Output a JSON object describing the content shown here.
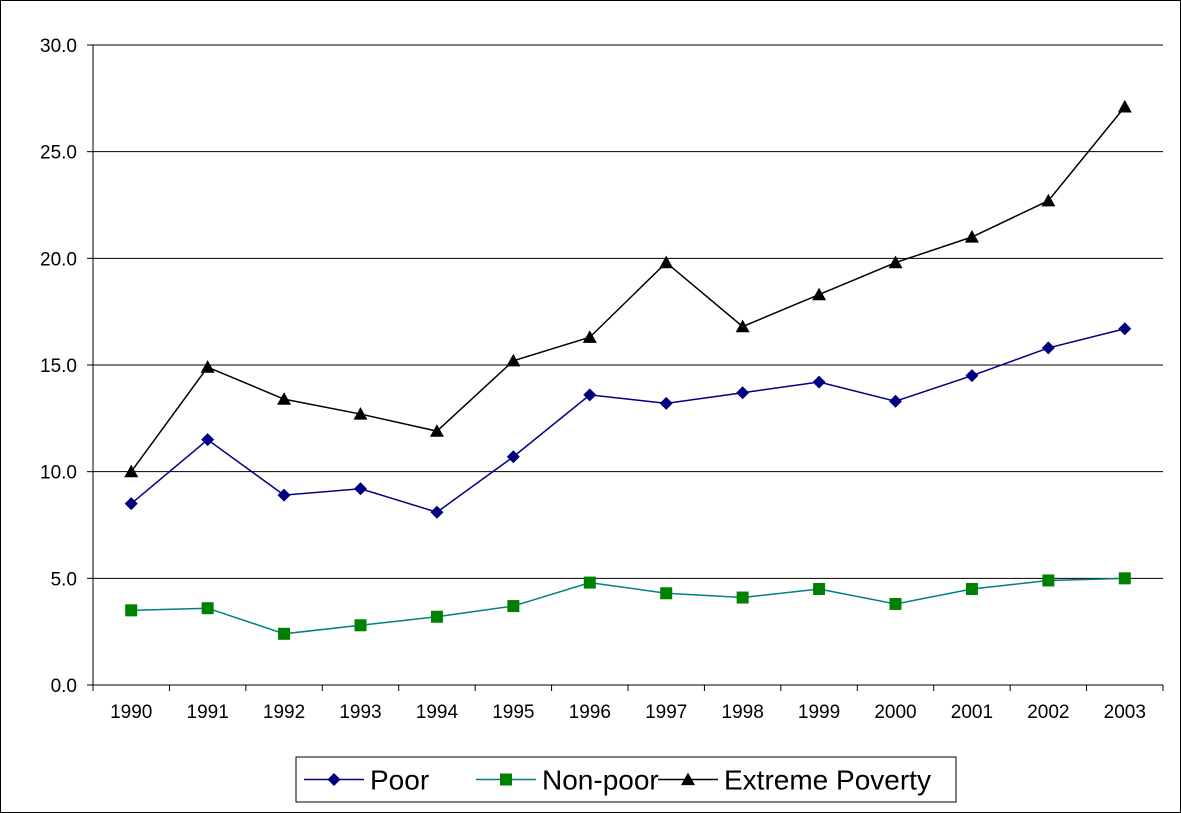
{
  "chart_data": {
    "type": "line",
    "title": "",
    "xlabel": "",
    "ylabel": "",
    "categories": [
      "1990",
      "1991",
      "1992",
      "1993",
      "1994",
      "1995",
      "1996",
      "1997",
      "1998",
      "1999",
      "2000",
      "2001",
      "2002",
      "2003"
    ],
    "ylim": [
      0,
      30
    ],
    "yticks": [
      0,
      5,
      10,
      15,
      20,
      25,
      30
    ],
    "ytick_labels": [
      "0.0",
      "5.0",
      "10.0",
      "15.0",
      "20.0",
      "25.0",
      "30.0"
    ],
    "grid": true,
    "legend_position": "bottom",
    "series": [
      {
        "name": "Poor",
        "color": "#000080",
        "marker": "diamond",
        "values": [
          8.5,
          11.5,
          8.9,
          9.2,
          8.1,
          10.7,
          13.6,
          13.2,
          13.7,
          14.2,
          13.3,
          14.5,
          15.8,
          16.7
        ]
      },
      {
        "name": "Non-poor",
        "color": "#008080",
        "marker_color": "#008000",
        "marker": "square",
        "values": [
          3.5,
          3.6,
          2.4,
          2.8,
          3.2,
          3.7,
          4.8,
          4.3,
          4.1,
          4.5,
          3.8,
          4.5,
          4.9,
          5.0
        ]
      },
      {
        "name": "Extreme Poverty",
        "color": "#000000",
        "marker": "triangle",
        "values": [
          10.0,
          14.9,
          13.4,
          12.7,
          11.9,
          15.2,
          16.3,
          19.8,
          16.8,
          18.3,
          19.8,
          21.0,
          22.7,
          27.1
        ]
      }
    ]
  }
}
